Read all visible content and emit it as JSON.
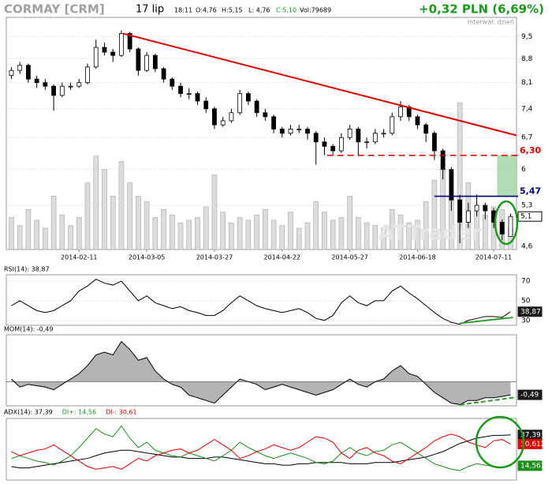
{
  "header": {
    "symbol": "CORMAY [CRM]",
    "date": "17 lip",
    "time": "18:11",
    "open": "O:4,76",
    "high": "H:5,15",
    "low": "L: 4,76",
    "close": "C:5,10",
    "volume": "Vol:79689",
    "change": "+0,32 PLN (6,69%)",
    "interval": "Interwał: dzień",
    "watermark": "ATTrader"
  },
  "chart_data": [
    {
      "type": "candlestick",
      "log_scale": true,
      "grid": true,
      "ylim": [
        4.55,
        10.15
      ],
      "yticks": [
        {
          "value": 4.6,
          "label": "4,6"
        },
        {
          "value": 5.3,
          "label": "5,3"
        },
        6,
        {
          "value": 6.7,
          "label": "6,7"
        },
        {
          "value": 7.4,
          "label": "7,4"
        },
        {
          "value": 8.1,
          "label": "8,1"
        },
        {
          "value": 8.8,
          "label": "8,8"
        },
        {
          "value": 9.5,
          "label": "9,5"
        }
      ],
      "xlim": [
        -0.6,
        59.7
      ],
      "xticks": [
        {
          "value": 8,
          "label": "2014-02-11"
        },
        {
          "value": 16,
          "label": "2014-03-05"
        },
        {
          "value": 24,
          "label": "2014-03-27"
        },
        {
          "value": 32,
          "label": "2014-04-22"
        },
        {
          "value": 40,
          "label": "2014-05-27"
        },
        {
          "value": 48,
          "label": "2014-06-18"
        },
        {
          "value": 57,
          "label": "2014-07-11"
        }
      ],
      "open": [
        8.3,
        8.45,
        8.6,
        8.2,
        8.1,
        8.0,
        7.75,
        8.0,
        8.0,
        8.1,
        8.55,
        9.15,
        9.0,
        8.9,
        9.6,
        9.1,
        8.45,
        8.9,
        8.5,
        8.2,
        8.0,
        7.8,
        7.8,
        7.6,
        7.4,
        7.0,
        7.1,
        7.3,
        7.8,
        7.6,
        7.3,
        7.2,
        6.9,
        6.8,
        6.9,
        6.9,
        6.8,
        6.6,
        6.5,
        6.4,
        6.7,
        6.9,
        6.6,
        6.6,
        6.8,
        6.8,
        7.2,
        7.45,
        7.2,
        7.0,
        6.8,
        6.4,
        6.0,
        5.4,
        5.0,
        5.2,
        5.3,
        5.2,
        5.0,
        4.76
      ],
      "high": [
        8.55,
        8.7,
        8.65,
        8.3,
        8.2,
        8.05,
        8.1,
        8.1,
        8.2,
        8.65,
        9.4,
        9.3,
        9.1,
        9.7,
        9.65,
        9.15,
        9.0,
        8.95,
        8.55,
        8.25,
        8.1,
        7.95,
        7.85,
        7.7,
        7.45,
        7.2,
        7.4,
        7.9,
        7.85,
        7.65,
        7.4,
        7.25,
        6.95,
        7.0,
        7.0,
        6.95,
        6.85,
        6.7,
        6.55,
        6.8,
        7.0,
        6.95,
        6.7,
        6.9,
        6.9,
        7.3,
        7.6,
        7.5,
        7.25,
        7.05,
        6.85,
        6.45,
        6.05,
        5.5,
        5.35,
        5.5,
        5.35,
        5.25,
        5.05,
        5.15
      ],
      "low": [
        8.2,
        8.35,
        8.1,
        7.95,
        7.9,
        7.35,
        7.7,
        7.9,
        7.95,
        8.05,
        8.5,
        8.9,
        8.7,
        8.85,
        9.0,
        8.3,
        8.4,
        8.4,
        8.1,
        7.9,
        7.7,
        7.65,
        7.5,
        7.3,
        6.9,
        6.95,
        7.05,
        7.25,
        7.5,
        7.2,
        7.1,
        6.8,
        6.7,
        6.75,
        6.8,
        6.65,
        6.1,
        6.3,
        6.3,
        6.35,
        6.65,
        6.3,
        6.45,
        6.55,
        6.7,
        6.75,
        7.1,
        7.1,
        6.9,
        6.6,
        6.2,
        5.8,
        5.2,
        4.65,
        4.9,
        5.1,
        5.05,
        4.9,
        4.7,
        4.76
      ],
      "close": [
        8.45,
        8.6,
        8.2,
        8.1,
        8.0,
        7.75,
        8.0,
        8.0,
        8.1,
        8.55,
        9.15,
        9.0,
        8.9,
        9.6,
        9.1,
        8.45,
        8.9,
        8.5,
        8.2,
        8.0,
        7.8,
        7.8,
        7.6,
        7.4,
        7.0,
        7.1,
        7.3,
        7.8,
        7.6,
        7.3,
        7.2,
        6.9,
        6.8,
        6.9,
        6.9,
        6.8,
        6.6,
        6.5,
        6.4,
        6.7,
        6.9,
        6.6,
        6.6,
        6.8,
        6.8,
        7.2,
        7.45,
        7.2,
        7.0,
        6.8,
        6.4,
        6.0,
        5.4,
        5.0,
        5.2,
        5.3,
        5.2,
        5.0,
        4.8,
        5.1
      ],
      "volume": [
        120000,
        90000,
        150000,
        110000,
        80000,
        200000,
        130000,
        90000,
        120000,
        250000,
        350000,
        300000,
        200000,
        330000,
        250000,
        200000,
        180000,
        120000,
        150000,
        130000,
        100000,
        110000,
        120000,
        160000,
        280000,
        140000,
        100000,
        120000,
        110000,
        130000,
        150000,
        110000,
        90000,
        140000,
        80000,
        100000,
        180000,
        140000,
        110000,
        120000,
        200000,
        120000,
        100000,
        90000,
        80000,
        150000,
        130000,
        100000,
        110000,
        180000,
        260000,
        300000,
        200000,
        550000,
        250000,
        140000,
        130000,
        160000,
        150000,
        79689
      ],
      "volume_lim": [
        0,
        870000
      ],
      "up_color": "#ffffff",
      "down_color": "#000000",
      "volume_color": "#dcdcdc",
      "trendline": {
        "points": [
          [
            13.2,
            9.6
          ],
          [
            59.7,
            6.75
          ]
        ],
        "color": "#e00000"
      },
      "levels": [
        {
          "value": 6.3,
          "label": "6,30",
          "color": "#e00000",
          "dash": true,
          "from": 37.3
        },
        {
          "value": 5.47,
          "label": "5,47",
          "color": "#000080",
          "dash": false,
          "from": 50
        }
      ],
      "zone": {
        "from": 57.4,
        "range": [
          5.47,
          6.3
        ],
        "color": "#9fd49f"
      },
      "last": {
        "value": 5.1,
        "label": "5,1"
      }
    },
    {
      "type": "line",
      "title": "RSI(14): 38,87",
      "ylim": [
        25,
        76.5
      ],
      "yticks": [
        70,
        50,
        30
      ],
      "series": [
        {
          "color": "#000000",
          "values": [
            45,
            50,
            45,
            40,
            38,
            40,
            45,
            50,
            60,
            65,
            72,
            68,
            66,
            70,
            60,
            50,
            55,
            48,
            45,
            42,
            44,
            40,
            38,
            35,
            35,
            40,
            48,
            55,
            50,
            45,
            42,
            40,
            38,
            40,
            42,
            38,
            32,
            30,
            35,
            48,
            55,
            48,
            45,
            50,
            50,
            60,
            65,
            58,
            52,
            45,
            38,
            32,
            28,
            26,
            30,
            32,
            34,
            34,
            33,
            38.87
          ],
          "last_label": {
            "value": 38.87,
            "label": "38,87"
          }
        }
      ],
      "trendline": {
        "points": [
          [
            53,
            27
          ],
          [
            59.3,
            33
          ]
        ],
        "color": "#2e9e2e"
      }
    },
    {
      "type": "area",
      "title": "MOM(14): -0,49",
      "ylim": [
        -0.9,
        1.75
      ],
      "series": [
        {
          "color": "#000000",
          "fill": "#b4b4b4",
          "values": [
            0.1,
            -0.2,
            -0.1,
            -0.15,
            -0.2,
            -0.3,
            -0.1,
            0.1,
            0.3,
            0.6,
            1.0,
            1.1,
            1.0,
            1.5,
            1.2,
            0.8,
            0.9,
            0.4,
            0.1,
            -0.1,
            -0.2,
            -0.5,
            -0.6,
            -0.7,
            -0.8,
            -0.5,
            -0.2,
            0.1,
            0.0,
            -0.1,
            -0.3,
            -0.2,
            -0.1,
            -0.2,
            -0.3,
            -0.4,
            -0.5,
            -0.4,
            -0.3,
            -0.1,
            0.1,
            -0.1,
            -0.2,
            0.0,
            0.1,
            0.4,
            0.6,
            0.3,
            0.2,
            -0.1,
            -0.4,
            -0.6,
            -0.8,
            -0.85,
            -0.7,
            -0.7,
            -0.6,
            -0.6,
            -0.55,
            -0.49
          ],
          "last_label": {
            "value": -0.49,
            "label": "-0,49"
          }
        }
      ],
      "trendline": {
        "points": [
          [
            53,
            -0.86
          ],
          [
            59.7,
            -0.58
          ]
        ],
        "color": "#2e9e2e",
        "dash": true
      }
    },
    {
      "type": "line",
      "ylim": [
        4,
        49.5
      ],
      "series": [
        {
          "name": "ADX(14): 37,39",
          "color": "#000000",
          "values": [
            14,
            13,
            13,
            14,
            15,
            16,
            17,
            18,
            19,
            20,
            22,
            24,
            25,
            26,
            26,
            25,
            24,
            23,
            22,
            21,
            21,
            20,
            20,
            20,
            21,
            21,
            20,
            19,
            18,
            17,
            16,
            16,
            15,
            15,
            16,
            16,
            17,
            17,
            17,
            17,
            16,
            16,
            16,
            17,
            17,
            17,
            18,
            19,
            20,
            21,
            23,
            25,
            28,
            31,
            33,
            35,
            36,
            37,
            37,
            37.39
          ],
          "last_label": {
            "value": 37.39,
            "label": "37,39"
          }
        },
        {
          "name": "DI+: 14,56",
          "color": "#1a8f1a",
          "values": [
            20,
            22,
            20,
            18,
            17,
            15,
            18,
            22,
            28,
            35,
            42,
            38,
            36,
            44,
            35,
            28,
            32,
            26,
            24,
            22,
            21,
            24,
            22,
            20,
            18,
            22,
            26,
            32,
            28,
            25,
            22,
            20,
            22,
            24,
            22,
            20,
            17,
            16,
            18,
            24,
            28,
            24,
            22,
            25,
            26,
            30,
            32,
            28,
            24,
            20,
            16,
            14,
            12,
            11,
            14,
            16,
            15,
            14,
            13,
            14.56
          ],
          "last_label": {
            "value": 14.56,
            "label": "14,563"
          }
        },
        {
          "name": "DI-: 30,61",
          "color": "#e00000",
          "values": [
            25,
            22,
            24,
            26,
            27,
            30,
            26,
            22,
            18,
            14,
            12,
            13,
            14,
            12,
            16,
            20,
            18,
            22,
            24,
            26,
            27,
            24,
            26,
            30,
            34,
            30,
            26,
            20,
            22,
            25,
            27,
            30,
            28,
            26,
            28,
            32,
            36,
            35,
            32,
            24,
            20,
            26,
            28,
            24,
            22,
            18,
            16,
            20,
            24,
            28,
            33,
            36,
            38,
            36,
            32,
            30,
            28,
            33,
            34,
            30.612
          ],
          "last_label": {
            "value": 30.612,
            "label": "30,612"
          }
        }
      ]
    }
  ]
}
